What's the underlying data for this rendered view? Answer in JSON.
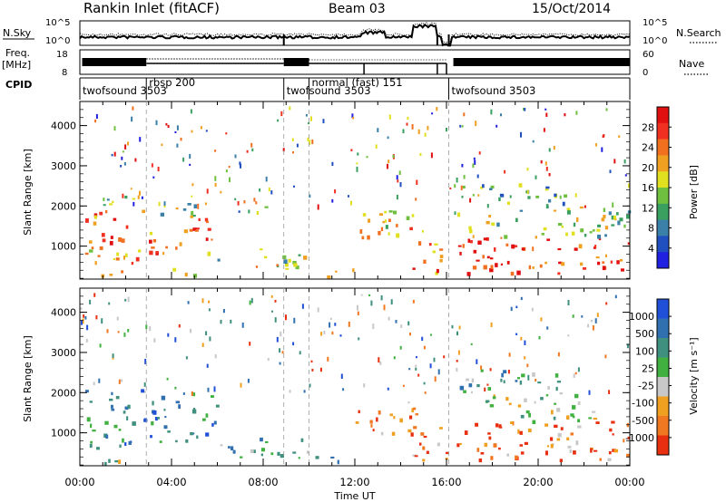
{
  "header": {
    "station": "Rankin Inlet (fitACF)",
    "beam": "Beam 03",
    "date": "15/Oct/2014"
  },
  "left_labels": {
    "nsky": "N.Sky",
    "freq": "Freq.",
    "freq_unit": "[MHz]",
    "cpid": "CPID"
  },
  "right_labels": {
    "nsearch": "N.Search",
    "nave": "Nave"
  },
  "noise_axis": {
    "left_ticks": [
      "10^5",
      "10^0"
    ],
    "right_ticks": [
      "10^5",
      "10^0"
    ]
  },
  "freq_axis": {
    "left_ticks": [
      "18",
      "8"
    ],
    "right_ticks": [
      "60",
      "0"
    ]
  },
  "cpid_segments": [
    {
      "label": "twofsound 3503",
      "start": 0.0,
      "end": 8.9
    },
    {
      "label": "rbsp 200",
      "start": 2.9,
      "end": 8.9
    },
    {
      "label": "twofsound 3503",
      "start": 8.9,
      "end": 10.0
    },
    {
      "label": "normal (fast) 151",
      "start": 10.0,
      "end": 16.1
    },
    {
      "label": "twofsound 3503",
      "start": 16.1,
      "end": 24.0
    }
  ],
  "chart_data": [
    {
      "type": "heatmap",
      "name": "power",
      "xlabel": "",
      "ylabel": "Slant Range [km]",
      "xlim": [
        0,
        24
      ],
      "ylim": [
        180,
        4600
      ],
      "yticks": [
        1000,
        2000,
        3000,
        4000
      ],
      "colorbar": {
        "label": "Power [dB]",
        "ticks": [
          "4",
          "8",
          "12",
          "16",
          "20",
          "24",
          "28"
        ],
        "colors": [
          "#2020e0",
          "#2050c0",
          "#3a80a8",
          "#3aa060",
          "#70c040",
          "#e0e020",
          "#f0a020",
          "#f07020",
          "#f03020",
          "#e01010"
        ]
      },
      "regions": [
        {
          "t0": 0.2,
          "t1": 2.9,
          "r0": 700,
          "r1": 1900,
          "level": 0.7
        },
        {
          "t0": 0.2,
          "t1": 2.9,
          "r0": 1900,
          "r1": 2300,
          "level": 0.45
        },
        {
          "t0": 0.6,
          "t1": 2.3,
          "r0": 300,
          "r1": 650,
          "level": 0.8
        },
        {
          "t0": 3.0,
          "t1": 6.0,
          "r0": 850,
          "r1": 1750,
          "level": 0.78
        },
        {
          "t0": 3.0,
          "t1": 6.0,
          "r0": 1750,
          "r1": 2100,
          "level": 0.45
        },
        {
          "t0": 3.9,
          "t1": 5.0,
          "r0": 300,
          "r1": 650,
          "level": 0.6
        },
        {
          "t0": 6.0,
          "t1": 10.0,
          "r0": 400,
          "r1": 950,
          "level": 0.5
        },
        {
          "t0": 6.8,
          "t1": 8.5,
          "r0": 1750,
          "r1": 2050,
          "level": 0.35
        },
        {
          "t0": 10.0,
          "t1": 12.0,
          "r0": 260,
          "r1": 450,
          "level": 0.5
        },
        {
          "t0": 11.9,
          "t1": 15.0,
          "r0": 1050,
          "r1": 1900,
          "level": 0.6
        },
        {
          "t0": 14.5,
          "t1": 16.0,
          "r0": 350,
          "r1": 1200,
          "level": 0.75
        },
        {
          "t0": 16.3,
          "t1": 24.0,
          "r0": 350,
          "r1": 1250,
          "level": 0.88
        },
        {
          "t0": 16.3,
          "t1": 24.0,
          "r0": 1250,
          "r1": 2000,
          "level": 0.45
        },
        {
          "t0": 16.5,
          "t1": 21.5,
          "r0": 2000,
          "r1": 2600,
          "level": 0.35
        }
      ]
    },
    {
      "type": "heatmap",
      "name": "velocity",
      "xlabel": "Time UT",
      "ylabel": "Slant Range [km]",
      "xlim": [
        0,
        24
      ],
      "ylim": [
        180,
        4600
      ],
      "yticks": [
        1000,
        2000,
        3000,
        4000
      ],
      "xticks": [
        "00:00",
        "04:00",
        "08:00",
        "12:00",
        "16:00",
        "20:00",
        "00:00"
      ],
      "colorbar": {
        "label": "Velocity [m s⁻¹]",
        "ticks": [
          "1000",
          "500",
          "100",
          "25",
          "-25",
          "-100",
          "-500",
          "-1000"
        ],
        "colors": [
          "#2050d8",
          "#3070b0",
          "#409080",
          "#40b040",
          "#c8c8c8",
          "#f0a020",
          "#f07820",
          "#e83010"
        ]
      },
      "regions": [
        {
          "t0": 0.2,
          "t1": 2.9,
          "r0": 700,
          "r1": 2100,
          "level": 0.3
        },
        {
          "t0": 0.5,
          "t1": 2.0,
          "r0": 250,
          "r1": 650,
          "level": 0.45
        },
        {
          "t0": 3.0,
          "t1": 6.0,
          "r0": 800,
          "r1": 2050,
          "level": 0.25
        },
        {
          "t0": 6.0,
          "t1": 10.0,
          "r0": 400,
          "r1": 950,
          "level": 0.35
        },
        {
          "t0": 10.0,
          "t1": 12.0,
          "r0": 260,
          "r1": 450,
          "level": 0.4
        },
        {
          "t0": 12.0,
          "t1": 15.0,
          "r0": 1000,
          "r1": 1850,
          "level": 0.75
        },
        {
          "t0": 14.5,
          "t1": 16.0,
          "r0": 350,
          "r1": 1200,
          "level": 0.8
        },
        {
          "t0": 16.3,
          "t1": 24.0,
          "r0": 350,
          "r1": 1300,
          "level": 0.82
        },
        {
          "t0": 17.5,
          "t1": 22.5,
          "r0": 1300,
          "r1": 2050,
          "level": 0.55
        },
        {
          "t0": 16.5,
          "t1": 21.0,
          "r0": 2050,
          "r1": 2600,
          "level": 0.4
        }
      ]
    }
  ]
}
